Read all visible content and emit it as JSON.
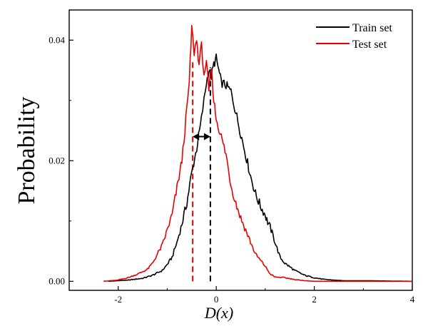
{
  "chart_data": {
    "type": "line",
    "title": "",
    "xlabel": "D(x)",
    "ylabel": "Probability",
    "xlim": [
      -3,
      4
    ],
    "ylim": [
      -0.0015,
      0.045
    ],
    "x_ticks": [
      -2,
      0,
      2,
      4
    ],
    "x_tick_labels": [
      "-2",
      "0",
      "2",
      "4"
    ],
    "y_ticks": [
      0.0,
      0.02,
      0.04
    ],
    "y_tick_labels": [
      "0.00",
      "0.02",
      "0.04"
    ],
    "grid": false,
    "legend_position": "top-right",
    "series": [
      {
        "name": "Train set",
        "color": "#000000",
        "points": [
          [
            -2.2,
            0.0
          ],
          [
            -1.8,
            0.0002
          ],
          [
            -1.5,
            0.0005
          ],
          [
            -1.3,
            0.001
          ],
          [
            -1.1,
            0.0018
          ],
          [
            -1.0,
            0.0028
          ],
          [
            -0.9,
            0.004
          ],
          [
            -0.8,
            0.0065
          ],
          [
            -0.7,
            0.0095
          ],
          [
            -0.6,
            0.013
          ],
          [
            -0.5,
            0.018
          ],
          [
            -0.4,
            0.022
          ],
          [
            -0.3,
            0.027
          ],
          [
            -0.25,
            0.03
          ],
          [
            -0.2,
            0.033
          ],
          [
            -0.15,
            0.035
          ],
          [
            -0.1,
            0.034
          ],
          [
            -0.05,
            0.036
          ],
          [
            0.0,
            0.037
          ],
          [
            0.05,
            0.035
          ],
          [
            0.1,
            0.033
          ],
          [
            0.2,
            0.0325
          ],
          [
            0.3,
            0.0315
          ],
          [
            0.4,
            0.028
          ],
          [
            0.5,
            0.0245
          ],
          [
            0.6,
            0.021
          ],
          [
            0.7,
            0.0175
          ],
          [
            0.8,
            0.0145
          ],
          [
            0.9,
            0.0125
          ],
          [
            1.0,
            0.011
          ],
          [
            1.05,
            0.0098
          ],
          [
            1.1,
            0.009
          ],
          [
            1.2,
            0.0065
          ],
          [
            1.3,
            0.004
          ],
          [
            1.4,
            0.003
          ],
          [
            1.6,
            0.0018
          ],
          [
            1.8,
            0.001
          ],
          [
            2.0,
            0.0006
          ],
          [
            2.2,
            0.0003
          ],
          [
            2.6,
            0.0001
          ],
          [
            3.0,
            0.0001
          ],
          [
            4.0,
            0.0
          ]
        ]
      },
      {
        "name": "Test set",
        "color": "#e60000",
        "points": [
          [
            -2.3,
            0.0
          ],
          [
            -2.0,
            0.0002
          ],
          [
            -1.8,
            0.0006
          ],
          [
            -1.6,
            0.0012
          ],
          [
            -1.4,
            0.002
          ],
          [
            -1.3,
            0.003
          ],
          [
            -1.2,
            0.0045
          ],
          [
            -1.1,
            0.006
          ],
          [
            -1.0,
            0.0085
          ],
          [
            -0.9,
            0.011
          ],
          [
            -0.8,
            0.0155
          ],
          [
            -0.7,
            0.02
          ],
          [
            -0.6,
            0.0285
          ],
          [
            -0.55,
            0.033
          ],
          [
            -0.5,
            0.042
          ],
          [
            -0.45,
            0.038
          ],
          [
            -0.4,
            0.04
          ],
          [
            -0.35,
            0.036
          ],
          [
            -0.3,
            0.039
          ],
          [
            -0.25,
            0.0345
          ],
          [
            -0.2,
            0.036
          ],
          [
            -0.15,
            0.0315
          ],
          [
            -0.1,
            0.0355
          ],
          [
            -0.05,
            0.03
          ],
          [
            0.0,
            0.027
          ],
          [
            0.1,
            0.024
          ],
          [
            0.2,
            0.021
          ],
          [
            0.3,
            0.016
          ],
          [
            0.4,
            0.013
          ],
          [
            0.5,
            0.0105
          ],
          [
            0.6,
            0.0085
          ],
          [
            0.7,
            0.0065
          ],
          [
            0.8,
            0.0045
          ],
          [
            0.9,
            0.0035
          ],
          [
            1.0,
            0.0025
          ],
          [
            1.1,
            0.0012
          ],
          [
            1.2,
            0.0007
          ],
          [
            1.4,
            0.0006
          ],
          [
            1.6,
            0.0003
          ],
          [
            1.8,
            0.0001
          ],
          [
            2.0,
            0.0
          ],
          [
            4.0,
            0.0
          ]
        ]
      }
    ],
    "reference_lines": [
      {
        "name": "test-set-peak",
        "x": -0.48,
        "y_top": 0.0365,
        "color": "#e60000",
        "dash": true
      },
      {
        "name": "train-set-peak",
        "x": -0.12,
        "y_top": 0.0355,
        "color": "#000000",
        "dash": true
      }
    ],
    "shift_arrow": {
      "x_from": -0.48,
      "x_to": -0.12,
      "y": 0.024
    }
  }
}
